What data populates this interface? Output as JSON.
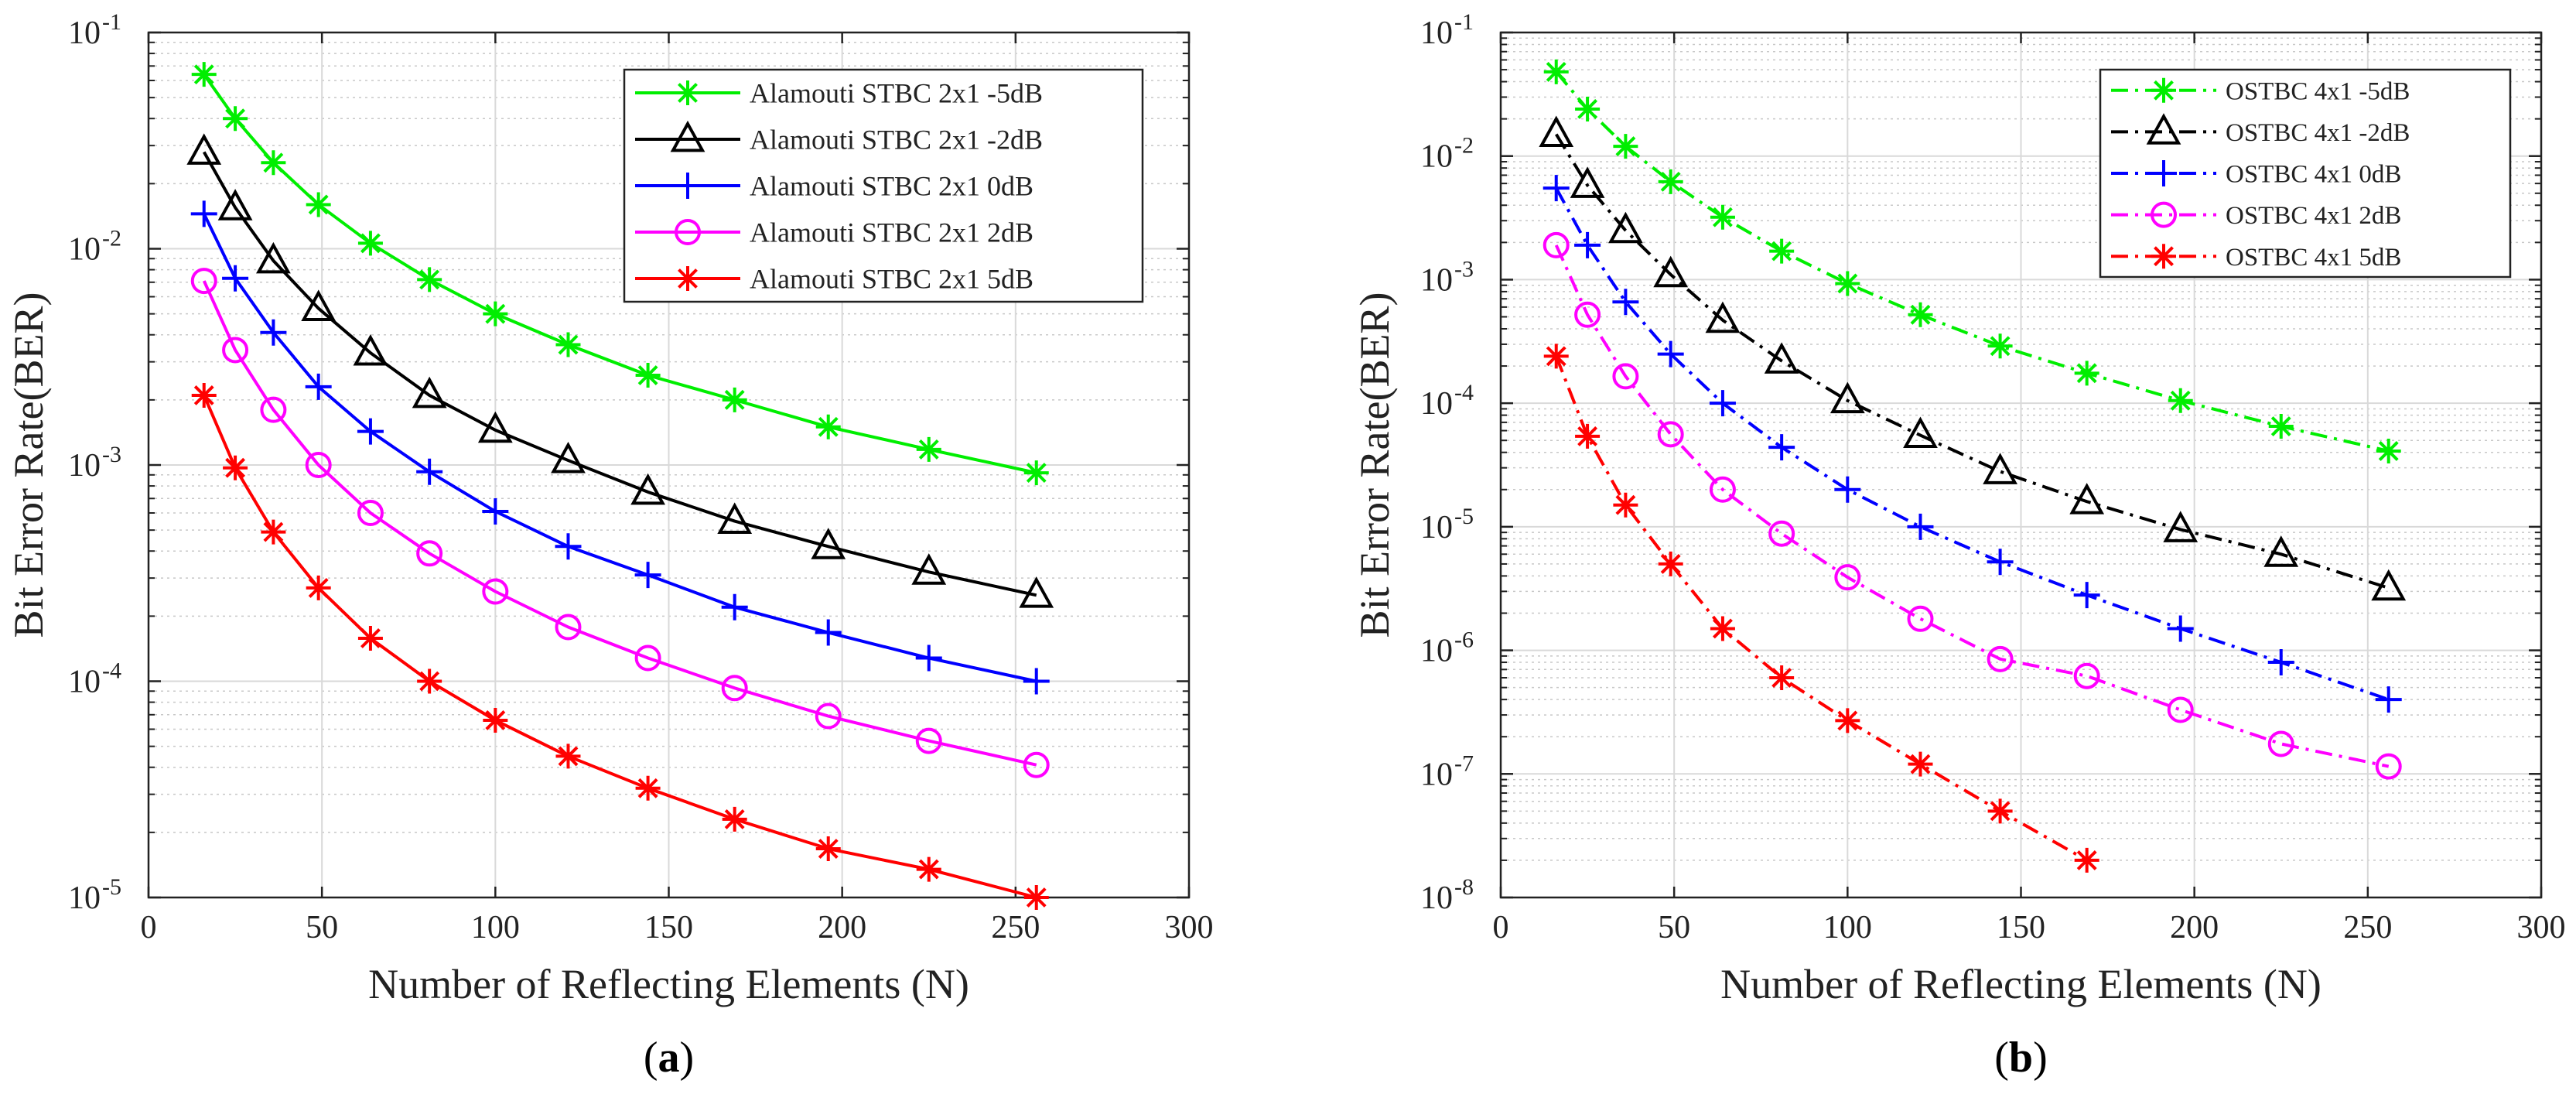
{
  "chart_data": [
    {
      "type": "line",
      "panel_label": "a",
      "title": "",
      "xlabel": "Number of Reflecting Elements (N)",
      "ylabel": "Bit Error Rate(BER)",
      "xlim": [
        0,
        300
      ],
      "xticks": [
        0,
        50,
        100,
        150,
        200,
        250,
        300
      ],
      "ylim": [
        1e-05,
        0.1
      ],
      "yscale": "log",
      "yticks": [
        {
          "mantissa": "10",
          "exp": "-5"
        },
        {
          "mantissa": "10",
          "exp": "-4"
        },
        {
          "mantissa": "10",
          "exp": "-3"
        },
        {
          "mantissa": "10",
          "exp": "-2"
        },
        {
          "mantissa": "10",
          "exp": "-1"
        }
      ],
      "grid": true,
      "legend_position": "top-right",
      "x": [
        16,
        25,
        36,
        49,
        64,
        81,
        100,
        121,
        144,
        169,
        196,
        225,
        256
      ],
      "series": [
        {
          "name": "Alamouti STBC 2x1 -5dB",
          "color": "#00ee00",
          "marker": "asterisk",
          "linestyle": "solid",
          "values": [
            0.064,
            0.04,
            0.025,
            0.016,
            0.0106,
            0.0072,
            0.005,
            0.0036,
            0.0026,
            0.002,
            0.0015,
            0.00118,
            0.00092
          ]
        },
        {
          "name": "Alamouti STBC 2x1 -2dB",
          "color": "#000000",
          "marker": "triangle",
          "linestyle": "solid",
          "values": [
            0.028,
            0.0155,
            0.0088,
            0.0053,
            0.0033,
            0.0021,
            0.00145,
            0.00105,
            0.00075,
            0.00055,
            0.00042,
            0.00032,
            0.00025
          ]
        },
        {
          "name": "Alamouti STBC 2x1 0dB",
          "color": "#0000ff",
          "marker": "plus",
          "linestyle": "solid",
          "values": [
            0.0145,
            0.0073,
            0.0041,
            0.0023,
            0.00143,
            0.00093,
            0.00061,
            0.00042,
            0.00031,
            0.00022,
            0.000168,
            0.000128,
            0.0001
          ]
        },
        {
          "name": "Alamouti STBC 2x1 2dB",
          "color": "#ff00ff",
          "marker": "circle",
          "linestyle": "solid",
          "values": [
            0.0071,
            0.0034,
            0.0018,
            0.001,
            0.0006,
            0.00039,
            0.00026,
            0.000178,
            0.000128,
            9.3e-05,
            6.9e-05,
            5.3e-05,
            4.1e-05
          ]
        },
        {
          "name": "Alamouti STBC 2x1 5dB",
          "color": "#ff0000",
          "marker": "asterisk",
          "linestyle": "solid",
          "values": [
            0.0021,
            0.00097,
            0.00049,
            0.00027,
            0.000158,
            0.0001,
            6.6e-05,
            4.5e-05,
            3.2e-05,
            2.3e-05,
            1.68e-05,
            1.35e-05,
            1e-05
          ]
        }
      ]
    },
    {
      "type": "line",
      "panel_label": "b",
      "title": "",
      "xlabel": "Number of Reflecting Elements (N)",
      "ylabel": "Bit Error Rate(BER)",
      "xlim": [
        0,
        300
      ],
      "xticks": [
        0,
        50,
        100,
        150,
        200,
        250,
        300
      ],
      "ylim": [
        1e-08,
        0.1
      ],
      "yscale": "log",
      "yticks": [
        {
          "mantissa": "10",
          "exp": "-8"
        },
        {
          "mantissa": "10",
          "exp": "-7"
        },
        {
          "mantissa": "10",
          "exp": "-6"
        },
        {
          "mantissa": "10",
          "exp": "-5"
        },
        {
          "mantissa": "10",
          "exp": "-4"
        },
        {
          "mantissa": "10",
          "exp": "-3"
        },
        {
          "mantissa": "10",
          "exp": "-2"
        },
        {
          "mantissa": "10",
          "exp": "-1"
        }
      ],
      "grid": true,
      "legend_position": "top-right",
      "x": [
        16,
        25,
        36,
        49,
        64,
        81,
        100,
        121,
        144,
        169,
        196,
        225,
        256
      ],
      "series": [
        {
          "name": "OSTBC 4x1 -5dB",
          "color": "#00ee00",
          "marker": "asterisk",
          "linestyle": "dashdot",
          "values": [
            0.048,
            0.024,
            0.012,
            0.0062,
            0.0032,
            0.0017,
            0.00093,
            0.00052,
            0.00029,
            0.000175,
            0.000105,
            6.5e-05,
            4.1e-05
          ]
        },
        {
          "name": "OSTBC 4x1 -2dB",
          "color": "#000000",
          "marker": "triangle",
          "linestyle": "dashdot",
          "values": [
            0.015,
            0.0058,
            0.0025,
            0.0011,
            0.00047,
            0.00022,
            0.000105,
            5.5e-05,
            2.8e-05,
            1.6e-05,
            9.5e-06,
            6e-06,
            3.2e-06
          ]
        },
        {
          "name": "OSTBC 4x1 0dB",
          "color": "#0000ff",
          "marker": "plus",
          "linestyle": "dashdot",
          "values": [
            0.0055,
            0.0019,
            0.00066,
            0.00025,
            0.0001,
            4.4e-05,
            2e-05,
            1e-05,
            5.2e-06,
            2.8e-06,
            1.5e-06,
            8e-07,
            4e-07
          ]
        },
        {
          "name": "OSTBC 4x1 2dB",
          "color": "#ff00ff",
          "marker": "circle",
          "linestyle": "dashdot",
          "values": [
            0.0019,
            0.00052,
            0.000165,
            5.6e-05,
            2e-05,
            8.8e-06,
            3.9e-06,
            1.8e-06,
            8.5e-07,
            6.2e-07,
            3.3e-07,
            1.75e-07,
            1.15e-07
          ]
        },
        {
          "name": "OSTBC 4x1 5dB",
          "color": "#ff0000",
          "marker": "asterisk",
          "linestyle": "dashdot",
          "x": [
            16,
            25,
            36,
            49,
            64,
            81,
            100,
            121,
            144,
            169
          ],
          "values": [
            0.00024,
            5.4e-05,
            1.5e-05,
            5e-06,
            1.5e-06,
            6e-07,
            2.7e-07,
            1.2e-07,
            5e-08,
            2e-08
          ]
        }
      ]
    }
  ]
}
